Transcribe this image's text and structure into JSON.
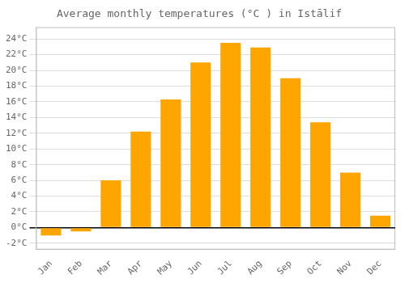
{
  "chart_data": {
    "type": "bar",
    "title": "Average monthly temperatures (°C ) in Istālif",
    "categories": [
      "Jan",
      "Feb",
      "Mar",
      "Apr",
      "May",
      "Jun",
      "Jul",
      "Aug",
      "Sep",
      "Oct",
      "Nov",
      "Dec"
    ],
    "values": [
      -1.0,
      -0.5,
      6.0,
      12.2,
      16.3,
      21.0,
      23.5,
      22.9,
      19.0,
      13.4,
      7.0,
      1.5
    ],
    "color": "#FFA500",
    "ylim": [
      -2.8,
      25.5
    ],
    "yticks": [
      {
        "value": -2,
        "label": "-2°C"
      },
      {
        "value": 0,
        "label": "0°C"
      },
      {
        "value": 2,
        "label": "2°C"
      },
      {
        "value": 4,
        "label": "4°C"
      },
      {
        "value": 6,
        "label": "6°C"
      },
      {
        "value": 8,
        "label": "8°C"
      },
      {
        "value": 10,
        "label": "10°C"
      },
      {
        "value": 12,
        "label": "12°C"
      },
      {
        "value": 14,
        "label": "14°C"
      },
      {
        "value": 16,
        "label": "16°C"
      },
      {
        "value": 18,
        "label": "18°C"
      },
      {
        "value": 20,
        "label": "20°C"
      },
      {
        "value": 22,
        "label": "22°C"
      },
      {
        "value": 24,
        "label": "24°C"
      }
    ],
    "grid": true
  }
}
